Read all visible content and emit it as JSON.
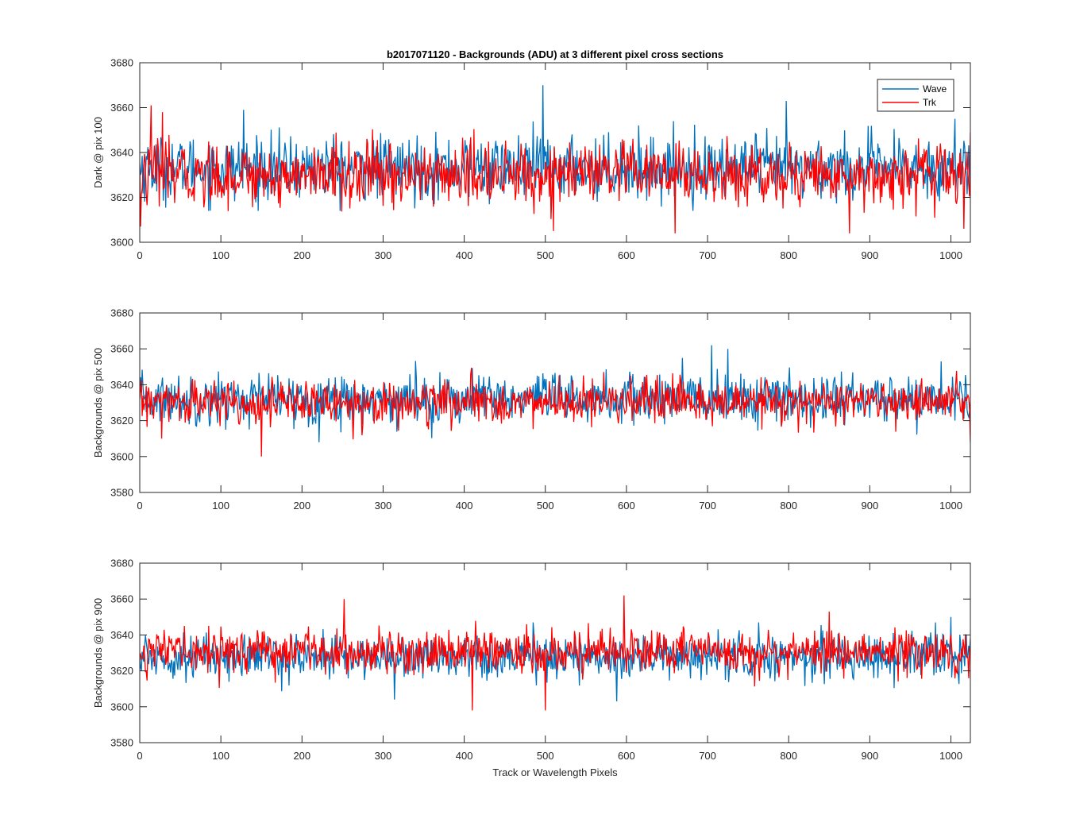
{
  "figure": {
    "title": "b2017071120 - Backgrounds (ADU) at 3 different pixel cross sections",
    "xlabel": "Track or Wavelength Pixels"
  },
  "legend": {
    "placement": "top-right",
    "entries": [
      {
        "name": "Wave",
        "color": "#0072BD"
      },
      {
        "name": "Trk",
        "color": "#FF0000"
      }
    ]
  },
  "chart_data": [
    {
      "type": "line",
      "ylabel": "Dark @ pix 100",
      "xlim": [
        0,
        1024
      ],
      "ylim": [
        3600,
        3680
      ],
      "xticks": [
        0,
        100,
        200,
        300,
        400,
        500,
        600,
        700,
        800,
        900,
        1000
      ],
      "yticks": [
        3600,
        3620,
        3640,
        3660,
        3680
      ],
      "grid": false,
      "series": [
        {
          "name": "Wave",
          "color": "#0072BD",
          "mean": 3633,
          "spread": 7,
          "min": 3611,
          "max": 3670,
          "peaks": [
            [
              128,
              3659
            ],
            [
              497,
              3670
            ],
            [
              797,
              3663
            ],
            [
              1005,
              3655
            ]
          ]
        },
        {
          "name": "Trk",
          "color": "#FF0000",
          "mean": 3630,
          "spread": 7,
          "min": 3604,
          "max": 3661,
          "peaks": [
            [
              1,
              3607
            ],
            [
              14,
              3661
            ],
            [
              28,
              3658
            ],
            [
              510,
              3605
            ],
            [
              660,
              3604
            ],
            [
              875,
              3604
            ],
            [
              1016,
              3606
            ]
          ]
        }
      ]
    },
    {
      "type": "line",
      "ylabel": "Backgrounds @ pix 500",
      "xlim": [
        0,
        1024
      ],
      "ylim": [
        3580,
        3680
      ],
      "xticks": [
        0,
        100,
        200,
        300,
        400,
        500,
        600,
        700,
        800,
        900,
        1000
      ],
      "yticks": [
        3580,
        3600,
        3620,
        3640,
        3660,
        3680
      ],
      "grid": false,
      "series": [
        {
          "name": "Wave",
          "color": "#0072BD",
          "mean": 3632,
          "spread": 7,
          "min": 3605,
          "max": 3662,
          "peaks": [
            [
              705,
              3662
            ],
            [
              725,
              3660
            ]
          ]
        },
        {
          "name": "Trk",
          "color": "#FF0000",
          "mean": 3630,
          "spread": 6,
          "min": 3600,
          "max": 3653,
          "peaks": [
            [
              150,
              3600
            ],
            [
              27,
              3610
            ],
            [
              1024,
              3608
            ]
          ]
        }
      ]
    },
    {
      "type": "line",
      "ylabel": "Backgrounds @ pix 900",
      "xlim": [
        0,
        1024
      ],
      "ylim": [
        3580,
        3680
      ],
      "xticks": [
        0,
        100,
        200,
        300,
        400,
        500,
        600,
        700,
        800,
        900,
        1000
      ],
      "yticks": [
        3580,
        3600,
        3620,
        3640,
        3660,
        3680
      ],
      "grid": false,
      "series": [
        {
          "name": "Wave",
          "color": "#0072BD",
          "mean": 3628,
          "spread": 6,
          "min": 3603,
          "max": 3650,
          "peaks": [
            [
              314,
              3604
            ],
            [
              588,
              3610
            ],
            [
              588,
              3603
            ],
            [
              1000,
              3650
            ]
          ]
        },
        {
          "name": "Trk",
          "color": "#FF0000",
          "mean": 3631,
          "spread": 6,
          "min": 3598,
          "max": 3662,
          "peaks": [
            [
              252,
              3660
            ],
            [
              410,
              3598
            ],
            [
              500,
              3598
            ],
            [
              597,
              3662
            ],
            [
              850,
              3653
            ]
          ]
        }
      ]
    }
  ]
}
